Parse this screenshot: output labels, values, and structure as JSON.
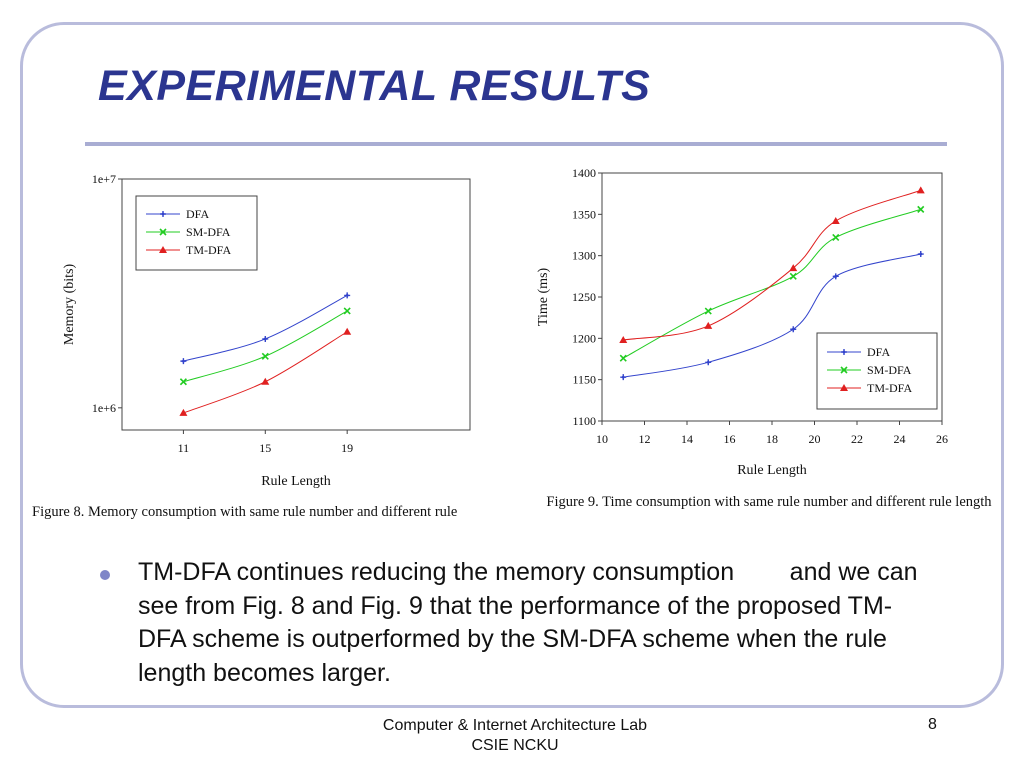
{
  "slide": {
    "title": "EXPERIMENTAL RESULTS",
    "bullet": "TM-DFA continues reducing the memory consumption        and we can see from Fig. 8 and Fig. 9 that the performance of the proposed TM-DFA scheme is outperformed by the SM-DFA scheme when the rule length becomes larger.",
    "footer_line1": "Computer & Internet Architecture Lab",
    "footer_line2": "CSIE NCKU",
    "page_number": "8"
  },
  "colors": {
    "title": "#2b3590",
    "rule": "#a9add3",
    "frame": "#b9bcdc",
    "bullet": "#7f86c8"
  },
  "chart_data": [
    {
      "type": "line",
      "caption": "Figure 8.    Memory consumption with same rule number and different rule",
      "xlabel": "Rule Length",
      "ylabel": "Memory (bits)",
      "yscale": "log",
      "xlim": [
        8,
        25
      ],
      "ylim": [
        800000,
        10000000
      ],
      "x_ticks": [
        11,
        15,
        19
      ],
      "y_ticks": [
        {
          "value": 1000000,
          "label": "1e+6"
        },
        {
          "value": 10000000,
          "label": "1e+7"
        }
      ],
      "legend": "top-left",
      "series": [
        {
          "name": "DFA",
          "color": "#3344cc",
          "marker": "plus",
          "x": [
            11,
            15,
            19
          ],
          "y": [
            1600000,
            2000000,
            3100000
          ]
        },
        {
          "name": "SM-DFA",
          "color": "#22cc22",
          "marker": "x",
          "x": [
            11,
            15,
            19
          ],
          "y": [
            1300000,
            1680000,
            2650000
          ]
        },
        {
          "name": "TM-DFA",
          "color": "#e02020",
          "marker": "triangle",
          "x": [
            11,
            15,
            19
          ],
          "y": [
            950000,
            1300000,
            2150000
          ]
        }
      ]
    },
    {
      "type": "line",
      "caption": "Figure 9.    Time consumption with same rule number and different rule length",
      "xlabel": "Rule Length",
      "ylabel": "Time (ms)",
      "xlim": [
        10,
        26
      ],
      "ylim": [
        1100,
        1400
      ],
      "x_ticks": [
        10,
        12,
        14,
        16,
        18,
        20,
        22,
        24,
        26
      ],
      "y_ticks": [
        1100,
        1150,
        1200,
        1250,
        1300,
        1350,
        1400
      ],
      "legend": "bottom-right",
      "series": [
        {
          "name": "DFA",
          "color": "#3344cc",
          "marker": "plus",
          "x": [
            11,
            15,
            19,
            21,
            25
          ],
          "y": [
            1153,
            1171,
            1211,
            1275,
            1302
          ]
        },
        {
          "name": "SM-DFA",
          "color": "#22cc22",
          "marker": "x",
          "x": [
            11,
            15,
            19,
            21,
            25
          ],
          "y": [
            1176,
            1233,
            1275,
            1322,
            1356
          ]
        },
        {
          "name": "TM-DFA",
          "color": "#e02020",
          "marker": "triangle",
          "x": [
            11,
            15,
            19,
            21,
            25
          ],
          "y": [
            1198,
            1215,
            1285,
            1342,
            1379
          ]
        }
      ]
    }
  ]
}
